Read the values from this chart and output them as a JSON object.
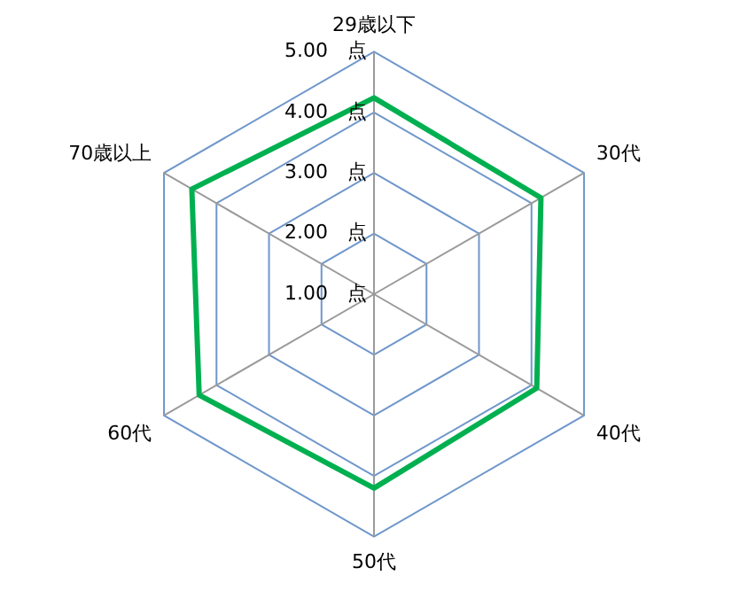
{
  "chart_data": {
    "type": "radar",
    "categories": [
      "29歳以下",
      "30代",
      "40代",
      "50代",
      "60代",
      "70歳以上"
    ],
    "series": [
      {
        "color": "#00b050",
        "values": [
          4.24,
          4.18,
          4.1,
          4.2,
          4.33,
          4.47
        ]
      }
    ],
    "ylim": [
      1,
      5
    ],
    "yticks": [
      {
        "value": 1,
        "label": "1.00　点"
      },
      {
        "value": 2,
        "label": "2.00　点"
      },
      {
        "value": 3,
        "label": "3.00　点"
      },
      {
        "value": 4,
        "label": "4.00　点"
      },
      {
        "value": 5,
        "label": "5.00　点"
      }
    ],
    "legend": false,
    "marker": "none"
  }
}
